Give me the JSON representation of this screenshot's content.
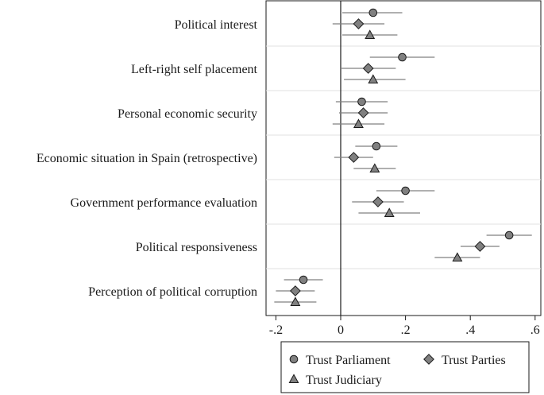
{
  "chart_data": {
    "type": "scatter",
    "subtype": "coefficient-plot",
    "orientation": "horizontal",
    "categories": [
      "Political interest",
      "Left-right self placement",
      "Personal economic security",
      "Economic situation in Spain (retrospective)",
      "Government performance evaluation",
      "Political responsiveness",
      "Perception of political corruption"
    ],
    "series": [
      {
        "name": "Trust Parliament",
        "marker": "circle",
        "values": [
          0.1,
          0.19,
          0.065,
          0.11,
          0.2,
          0.52,
          -0.115
        ],
        "ci_low": [
          0.005,
          0.09,
          -0.015,
          0.045,
          0.11,
          0.45,
          -0.175
        ],
        "ci_high": [
          0.19,
          0.29,
          0.145,
          0.175,
          0.29,
          0.59,
          -0.055
        ]
      },
      {
        "name": "Trust Parties",
        "marker": "diamond",
        "values": [
          0.055,
          0.085,
          0.07,
          0.04,
          0.115,
          0.43,
          -0.14
        ],
        "ci_low": [
          -0.025,
          0.0,
          -0.005,
          -0.02,
          0.035,
          0.37,
          -0.2
        ],
        "ci_high": [
          0.135,
          0.17,
          0.145,
          0.1,
          0.195,
          0.49,
          -0.08
        ]
      },
      {
        "name": "Trust Judiciary",
        "marker": "triangle",
        "values": [
          0.09,
          0.1,
          0.055,
          0.105,
          0.15,
          0.36,
          -0.14
        ],
        "ci_low": [
          0.005,
          0.01,
          -0.025,
          0.04,
          0.055,
          0.29,
          -0.205
        ],
        "ci_high": [
          0.175,
          0.2,
          0.135,
          0.17,
          0.245,
          0.43,
          -0.075
        ]
      }
    ],
    "x_ticks": [
      -0.2,
      0,
      0.2,
      0.4,
      0.6
    ],
    "x_tick_labels": [
      "-.2",
      "0",
      ".2",
      ".4",
      ".6"
    ],
    "xlim": [
      -0.23,
      0.63
    ],
    "reference_line": 0,
    "grid": "horizontal separators between categories",
    "legend_position": "bottom",
    "colors": {
      "marker_fill": "#808080",
      "marker_stroke": "#1a1a1a",
      "ci_line": "#808080",
      "grid": "#e0e0e0",
      "axis": "#1a1a1a"
    }
  }
}
